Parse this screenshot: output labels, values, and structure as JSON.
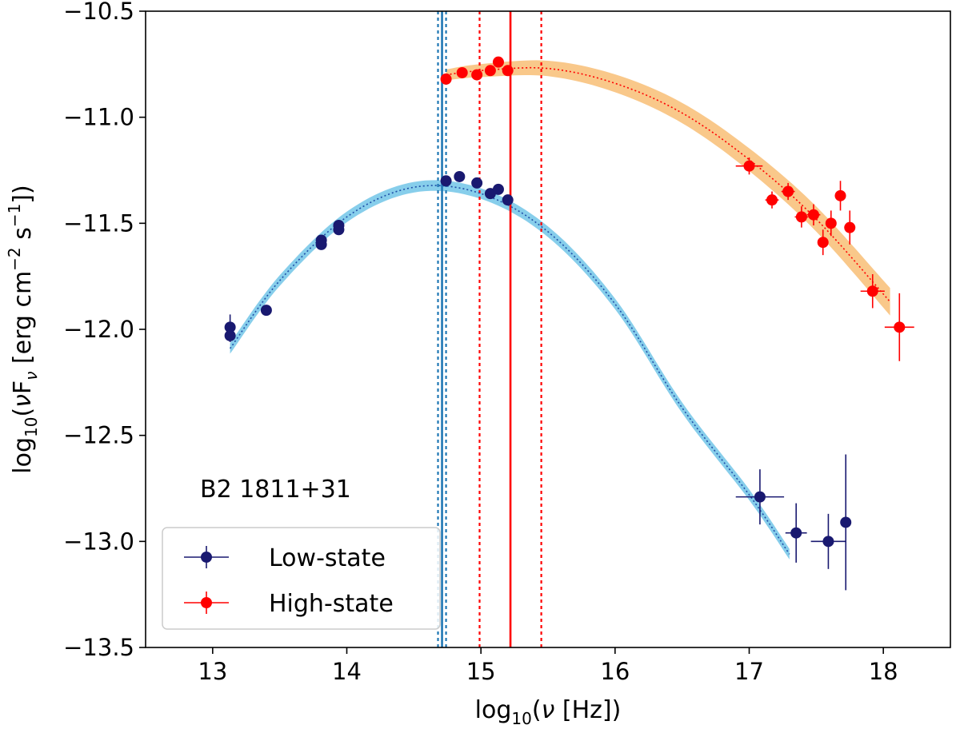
{
  "chart_data": {
    "type": "scatter",
    "title": "",
    "xlabel": "log10(ν [Hz])",
    "ylabel": "log10(νFν [erg cm−2 s−1])",
    "xlim": [
      12.5,
      18.5
    ],
    "ylim": [
      -13.5,
      -10.5
    ],
    "xticks": [
      13,
      14,
      15,
      16,
      17,
      18
    ],
    "yticks": [
      -13.5,
      -13.0,
      -12.5,
      -12.0,
      -11.5,
      -11.0,
      -10.5
    ],
    "xtick_labels": [
      "13",
      "14",
      "15",
      "16",
      "17",
      "18"
    ],
    "ytick_labels": [
      "−13.5",
      "−13.0",
      "−12.5",
      "−12.0",
      "−11.5",
      "−11.0",
      "−10.5"
    ],
    "annotation": "B2 1811+31",
    "legend": {
      "position": "lower-left",
      "entries": [
        "Low-state",
        "High-state"
      ]
    },
    "series": [
      {
        "name": "Low-state",
        "color": "#191970",
        "points": [
          {
            "x": 13.13,
            "y": -11.99,
            "yerr": 0.06,
            "xerr": 0
          },
          {
            "x": 13.13,
            "y": -12.03,
            "yerr": 0.03,
            "xerr": 0
          },
          {
            "x": 13.4,
            "y": -11.91,
            "yerr": 0.02,
            "xerr": 0
          },
          {
            "x": 13.81,
            "y": -11.58,
            "yerr": 0.02,
            "xerr": 0
          },
          {
            "x": 13.81,
            "y": -11.6,
            "yerr": 0.02,
            "xerr": 0
          },
          {
            "x": 13.94,
            "y": -11.51,
            "yerr": 0.02,
            "xerr": 0
          },
          {
            "x": 13.94,
            "y": -11.53,
            "yerr": 0.02,
            "xerr": 0
          },
          {
            "x": 14.74,
            "y": -11.3,
            "yerr": 0.01,
            "xerr": 0
          },
          {
            "x": 14.84,
            "y": -11.28,
            "yerr": 0.01,
            "xerr": 0
          },
          {
            "x": 14.97,
            "y": -11.31,
            "yerr": 0.01,
            "xerr": 0
          },
          {
            "x": 15.07,
            "y": -11.36,
            "yerr": 0.01,
            "xerr": 0
          },
          {
            "x": 15.13,
            "y": -11.34,
            "yerr": 0.01,
            "xerr": 0
          },
          {
            "x": 15.2,
            "y": -11.39,
            "yerr": 0.01,
            "xerr": 0
          },
          {
            "x": 17.08,
            "y": -12.79,
            "yerr": 0.13,
            "xerr": 0.18
          },
          {
            "x": 17.35,
            "y": -12.96,
            "yerr": 0.14,
            "xerr": 0.08
          },
          {
            "x": 17.59,
            "y": -13.0,
            "yerr": 0.13,
            "xerr": 0.13
          },
          {
            "x": 17.72,
            "y": -12.91,
            "yerr": 0.32,
            "xerr": 0.04
          }
        ],
        "model": {
          "line_color": "#1f4fa8",
          "band_color": "#87ceeb",
          "x_range": [
            13.13,
            17.3
          ],
          "x": [
            13.13,
            13.5,
            14.0,
            14.5,
            15.0,
            15.5,
            16.0,
            16.5,
            17.0,
            17.3
          ],
          "y": [
            -12.09,
            -11.77,
            -11.47,
            -11.33,
            -11.36,
            -11.54,
            -11.88,
            -12.37,
            -12.78,
            -13.06
          ],
          "band_halfwidth": 0.025,
          "peak_x": 14.71,
          "peak_x_err": 0.03
        }
      },
      {
        "name": "High-state",
        "color": "#ff0000",
        "points": [
          {
            "x": 14.74,
            "y": -10.82,
            "yerr": 0.01,
            "xerr": 0
          },
          {
            "x": 14.86,
            "y": -10.79,
            "yerr": 0.01,
            "xerr": 0
          },
          {
            "x": 14.97,
            "y": -10.8,
            "yerr": 0.01,
            "xerr": 0
          },
          {
            "x": 15.07,
            "y": -10.78,
            "yerr": 0.01,
            "xerr": 0
          },
          {
            "x": 15.13,
            "y": -10.74,
            "yerr": 0.01,
            "xerr": 0
          },
          {
            "x": 15.2,
            "y": -10.78,
            "yerr": 0.01,
            "xerr": 0
          },
          {
            "x": 17.0,
            "y": -11.23,
            "yerr": 0.04,
            "xerr": 0.1
          },
          {
            "x": 17.17,
            "y": -11.39,
            "yerr": 0.04,
            "xerr": 0.05
          },
          {
            "x": 17.29,
            "y": -11.35,
            "yerr": 0.04,
            "xerr": 0.05
          },
          {
            "x": 17.39,
            "y": -11.47,
            "yerr": 0.05,
            "xerr": 0.05
          },
          {
            "x": 17.48,
            "y": -11.46,
            "yerr": 0.05,
            "xerr": 0.05
          },
          {
            "x": 17.55,
            "y": -11.59,
            "yerr": 0.06,
            "xerr": 0.04
          },
          {
            "x": 17.61,
            "y": -11.5,
            "yerr": 0.06,
            "xerr": 0.04
          },
          {
            "x": 17.68,
            "y": -11.37,
            "yerr": 0.07,
            "xerr": 0.04
          },
          {
            "x": 17.75,
            "y": -11.52,
            "yerr": 0.08,
            "xerr": 0.04
          },
          {
            "x": 17.92,
            "y": -11.82,
            "yerr": 0.08,
            "xerr": 0.09
          },
          {
            "x": 18.12,
            "y": -11.99,
            "yerr": 0.16,
            "xerr": 0.11
          }
        ],
        "model": {
          "line_color": "#ff0000",
          "band_color": "#f9c88a",
          "x_range": [
            14.74,
            18.05
          ],
          "x": [
            14.74,
            15.0,
            15.5,
            16.0,
            16.5,
            17.0,
            17.5,
            18.05
          ],
          "y": [
            -10.8,
            -10.78,
            -10.77,
            -10.84,
            -10.98,
            -11.2,
            -11.48,
            -11.87
          ],
          "band_halfwidth_start": 0.025,
          "band_halfwidth_end": 0.065,
          "peak_x": 15.22,
          "peak_x_err": 0.23
        }
      }
    ]
  }
}
